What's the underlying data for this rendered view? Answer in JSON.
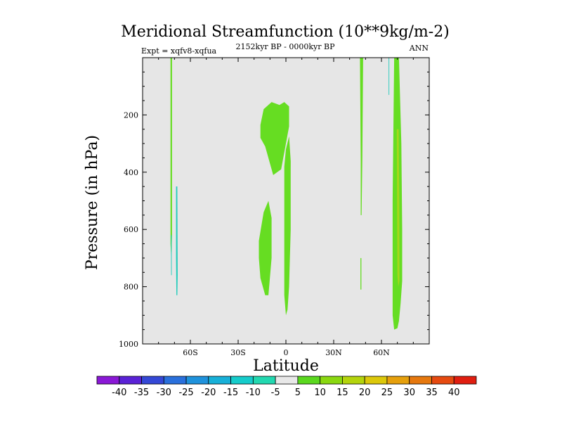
{
  "chart_data": {
    "type": "contour",
    "title": "Meridional Streamfunction (10**9kg/m-2)",
    "subtitle_left": "Expt = xqfv8-xqfua",
    "subtitle_center": "2152kyr BP - 0000kyr BP",
    "subtitle_right": "ANN",
    "xlabel": "Latitude",
    "ylabel": "Pressure (in hPa)",
    "xlim": [
      -90,
      90
    ],
    "ylim": [
      1000,
      0
    ],
    "x_ticks": [
      {
        "value": -60,
        "label": "60S"
      },
      {
        "value": -30,
        "label": "30S"
      },
      {
        "value": 0,
        "label": "0"
      },
      {
        "value": 30,
        "label": "30N"
      },
      {
        "value": 60,
        "label": "60N"
      }
    ],
    "y_ticks": [
      200,
      400,
      600,
      800,
      1000
    ],
    "background_color": "#e6e6e6",
    "colorbar": {
      "labels": [
        "-40",
        "-35",
        "-30",
        "-25",
        "-20",
        "-15",
        "-10",
        "-5",
        "5",
        "10",
        "15",
        "20",
        "25",
        "30",
        "35",
        "40"
      ],
      "colors": [
        "#8a18d6",
        "#5a22d6",
        "#3448d6",
        "#2a70dc",
        "#1f92dc",
        "#17b0d8",
        "#15cccb",
        "#22d8b0",
        "#e8e8e8",
        "#5ad81e",
        "#8ad810",
        "#b4d40c",
        "#dcc80a",
        "#e6a00c",
        "#e6780e",
        "#e64a10",
        "#e01e10"
      ]
    },
    "regions": [
      {
        "name": "positive-cell-sh-upper",
        "level": 5,
        "color": "#66dd22",
        "points": [
          [
            -16,
            235
          ],
          [
            -14,
            180
          ],
          [
            -9,
            155
          ],
          [
            -4,
            165
          ],
          [
            -1,
            155
          ],
          [
            2,
            170
          ],
          [
            2,
            240
          ],
          [
            0,
            300
          ],
          [
            -3,
            390
          ],
          [
            -8,
            410
          ],
          [
            -13,
            310
          ],
          [
            -16,
            280
          ]
        ]
      },
      {
        "name": "positive-cell-sh-lower",
        "level": 5,
        "color": "#66dd22",
        "points": [
          [
            -17,
            640
          ],
          [
            -14,
            540
          ],
          [
            -11,
            500
          ],
          [
            -9,
            560
          ],
          [
            -9,
            700
          ],
          [
            -11,
            830
          ],
          [
            -13,
            830
          ],
          [
            -16,
            770
          ],
          [
            -17,
            700
          ]
        ]
      },
      {
        "name": "positive-column-equator",
        "level": 5,
        "color": "#66dd22",
        "points": [
          [
            -1,
            380
          ],
          [
            0,
            320
          ],
          [
            2,
            275
          ],
          [
            3,
            360
          ],
          [
            3,
            600
          ],
          [
            2,
            800
          ],
          [
            1,
            880
          ],
          [
            0,
            900
          ],
          [
            -1,
            830
          ],
          [
            -1,
            500
          ]
        ]
      },
      {
        "name": "positive-strip-south",
        "level": 5,
        "color": "#66dd22",
        "points": [
          [
            -72.5,
            0
          ],
          [
            -71.5,
            0
          ],
          [
            -71.5,
            620
          ],
          [
            -72,
            700
          ],
          [
            -72.5,
            650
          ]
        ]
      },
      {
        "name": "positive-strip-north-47",
        "level": 5,
        "color": "#66dd22",
        "points": [
          [
            46.5,
            0
          ],
          [
            48.5,
            0
          ],
          [
            48,
            350
          ],
          [
            47.5,
            550
          ],
          [
            47,
            550
          ],
          [
            47,
            360
          ]
        ]
      },
      {
        "name": "positive-strip-north-47-low",
        "level": 5,
        "color": "#66dd22",
        "points": [
          [
            46.8,
            700
          ],
          [
            47.4,
            700
          ],
          [
            47.4,
            810
          ],
          [
            46.8,
            810
          ]
        ]
      },
      {
        "name": "positive-column-north",
        "level": 5,
        "color": "#66dd22",
        "points": [
          [
            68,
            0
          ],
          [
            71,
            0
          ],
          [
            72.5,
            300
          ],
          [
            73,
            600
          ],
          [
            73,
            780
          ],
          [
            72,
            860
          ],
          [
            71,
            920
          ],
          [
            70,
            945
          ],
          [
            68,
            950
          ],
          [
            67,
            900
          ],
          [
            67,
            500
          ]
        ]
      },
      {
        "name": "positive-column-north-inner",
        "level": 10,
        "color": "#a6d81a",
        "points": [
          [
            69.6,
            250
          ],
          [
            70.8,
            250
          ],
          [
            71.2,
            500
          ],
          [
            71.3,
            780
          ],
          [
            70.6,
            800
          ],
          [
            70,
            760
          ],
          [
            69.8,
            500
          ]
        ]
      },
      {
        "name": "negative-strip-south",
        "level": -5,
        "color": "#22ccbb",
        "points": [
          [
            -69,
            450
          ],
          [
            -68.2,
            450
          ],
          [
            -68,
            760
          ],
          [
            -68.2,
            830
          ],
          [
            -68.8,
            830
          ],
          [
            -69,
            700
          ]
        ]
      },
      {
        "name": "negative-strip-south-edge",
        "level": -5,
        "color": "#22ccbb",
        "points": [
          [
            -72.2,
            620
          ],
          [
            -71.8,
            620
          ],
          [
            -71.7,
            760
          ],
          [
            -72.1,
            760
          ]
        ]
      },
      {
        "name": "negative-strip-north",
        "level": -5,
        "color": "#22ccbb",
        "points": [
          [
            64.5,
            0
          ],
          [
            64.9,
            0
          ],
          [
            64.9,
            130
          ],
          [
            64.5,
            130
          ]
        ]
      }
    ]
  }
}
